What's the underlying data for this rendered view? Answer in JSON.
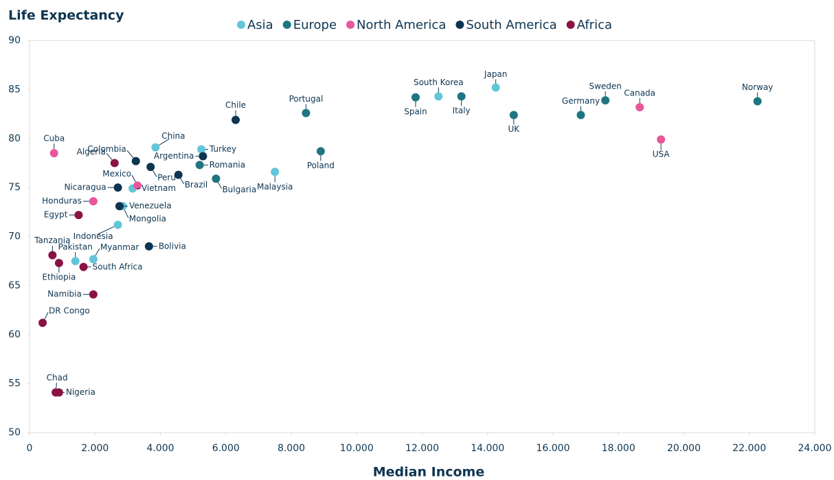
{
  "chart_data": {
    "type": "scatter",
    "y_label": "Life Expectancy",
    "x_label": "Median Income",
    "xlim": [
      0,
      24000
    ],
    "ylim": [
      50,
      90
    ],
    "xticks": [
      0,
      {
        "value": 2000,
        "label": "2.000"
      },
      {
        "value": 4000,
        "label": "4.000"
      },
      {
        "value": 6000,
        "label": "6.000"
      },
      {
        "value": 8000,
        "label": "8.000"
      },
      {
        "value": 10000,
        "label": "10.000"
      },
      {
        "value": 12000,
        "label": "12.000"
      },
      {
        "value": 14000,
        "label": "14.000"
      },
      {
        "value": 16000,
        "label": "16.000"
      },
      {
        "value": 18000,
        "label": "18.000"
      },
      {
        "value": 20000,
        "label": "20.000"
      },
      {
        "value": 22000,
        "label": "22.000"
      },
      {
        "value": 24000,
        "label": "24.000"
      }
    ],
    "yticks": [
      50,
      55,
      60,
      65,
      70,
      75,
      80,
      85,
      90
    ],
    "series": [
      {
        "name": "Asia",
        "color": "#62c6d9",
        "labels": [
          "Japan",
          "South Korea",
          "China",
          "Turkey",
          "Malaysia",
          "Vietnam",
          "Mongolia",
          "Indonesia",
          "Pakistan",
          "Myanmar"
        ],
        "x": [
          14250,
          12500,
          3850,
          5250,
          7500,
          3150,
          2850,
          2700,
          1400,
          1950
        ],
        "values": [
          85.2,
          84.3,
          79.1,
          78.9,
          76.6,
          74.9,
          73.1,
          71.2,
          67.5,
          67.7
        ]
      },
      {
        "name": "Europe",
        "color": "#1f7580",
        "labels": [
          "Norway",
          "Sweden",
          "Germany",
          "UK",
          "Italy",
          "Spain",
          "Portugal",
          "Poland",
          "Romania",
          "Bulgaria"
        ],
        "x": [
          22250,
          17600,
          16850,
          14800,
          13200,
          11800,
          8450,
          8900,
          5200,
          5700
        ],
        "values": [
          83.8,
          83.9,
          82.4,
          82.4,
          84.3,
          84.2,
          82.6,
          78.7,
          77.3,
          75.9
        ]
      },
      {
        "name": "North America",
        "color": "#e8579b",
        "labels": [
          "Canada",
          "USA",
          "Cuba",
          "Mexico",
          "Honduras"
        ],
        "x": [
          18650,
          19300,
          750,
          3300,
          1950
        ],
        "values": [
          83.2,
          79.9,
          78.5,
          75.2,
          73.6
        ]
      },
      {
        "name": "South America",
        "color": "#0d3552",
        "labels": [
          "Chile",
          "Argentina",
          "Colombia",
          "Peru",
          "Brazil",
          "Nicaragua",
          "Venezuela",
          "Bolivia"
        ],
        "x": [
          6300,
          5300,
          3250,
          3700,
          4550,
          2700,
          2750,
          3650
        ],
        "values": [
          81.9,
          78.2,
          77.7,
          77.1,
          76.3,
          75.0,
          73.1,
          69.0
        ]
      },
      {
        "name": "Africa",
        "color": "#8a1245",
        "labels": [
          "Algeria",
          "Egypt",
          "Tanzania",
          "Ethiopia",
          "South Africa",
          "Namibia",
          "DR Congo",
          "Chad",
          "Nigeria"
        ],
        "x": [
          2600,
          1500,
          700,
          900,
          1650,
          1950,
          400,
          800,
          900
        ],
        "values": [
          77.5,
          72.2,
          68.1,
          67.3,
          66.9,
          64.1,
          61.2,
          54.1,
          54.1
        ]
      }
    ]
  }
}
